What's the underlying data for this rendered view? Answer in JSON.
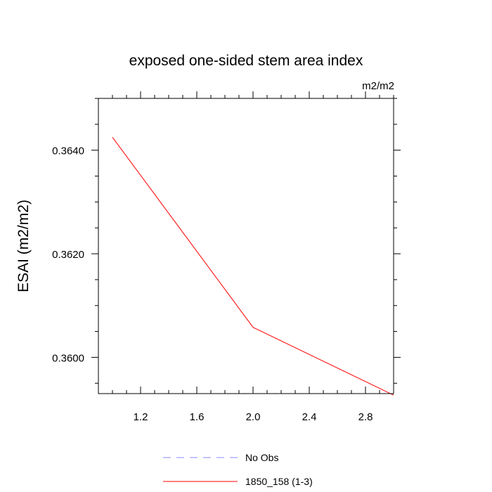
{
  "chart_data": {
    "type": "line",
    "title": "exposed one-sided stem area index",
    "units_label": "m2/m2",
    "ylabel": "ESAI  (m2/m2)",
    "xlabel": "",
    "xlim": [
      0.9,
      3.0
    ],
    "ylim": [
      0.3593,
      0.365
    ],
    "x_ticks_major": [
      1.2,
      1.6,
      2.0,
      2.4,
      2.8
    ],
    "x_tick_labels": [
      "1.2",
      "1.6",
      "2.0",
      "2.4",
      "2.8"
    ],
    "x_ticks_minor": [
      1.0,
      1.1,
      1.3,
      1.4,
      1.5,
      1.7,
      1.8,
      1.9,
      2.1,
      2.2,
      2.3,
      2.5,
      2.6,
      2.7,
      2.9,
      3.0
    ],
    "y_ticks_major": [
      0.36,
      0.362,
      0.364
    ],
    "y_tick_labels": [
      "0.3600",
      "0.3620",
      "0.3640"
    ],
    "y_ticks_minor": [
      0.3595,
      0.3605,
      0.361,
      0.3615,
      0.3625,
      0.363,
      0.3635,
      0.3645,
      0.365
    ],
    "grid": false,
    "series": [
      {
        "name": "1850_158 (1-3)",
        "color": "#ff0000",
        "dash": "solid",
        "x": [
          1.0,
          2.0,
          3.0
        ],
        "y": [
          0.36425,
          0.36058,
          0.35927
        ]
      }
    ],
    "legend": {
      "placement": "bottom-center",
      "entries": [
        {
          "label": "No Obs",
          "color": "#8888ff",
          "dash": "dashed"
        },
        {
          "label": "1850_158 (1-3)",
          "color": "#ff0000",
          "dash": "solid"
        }
      ]
    }
  }
}
